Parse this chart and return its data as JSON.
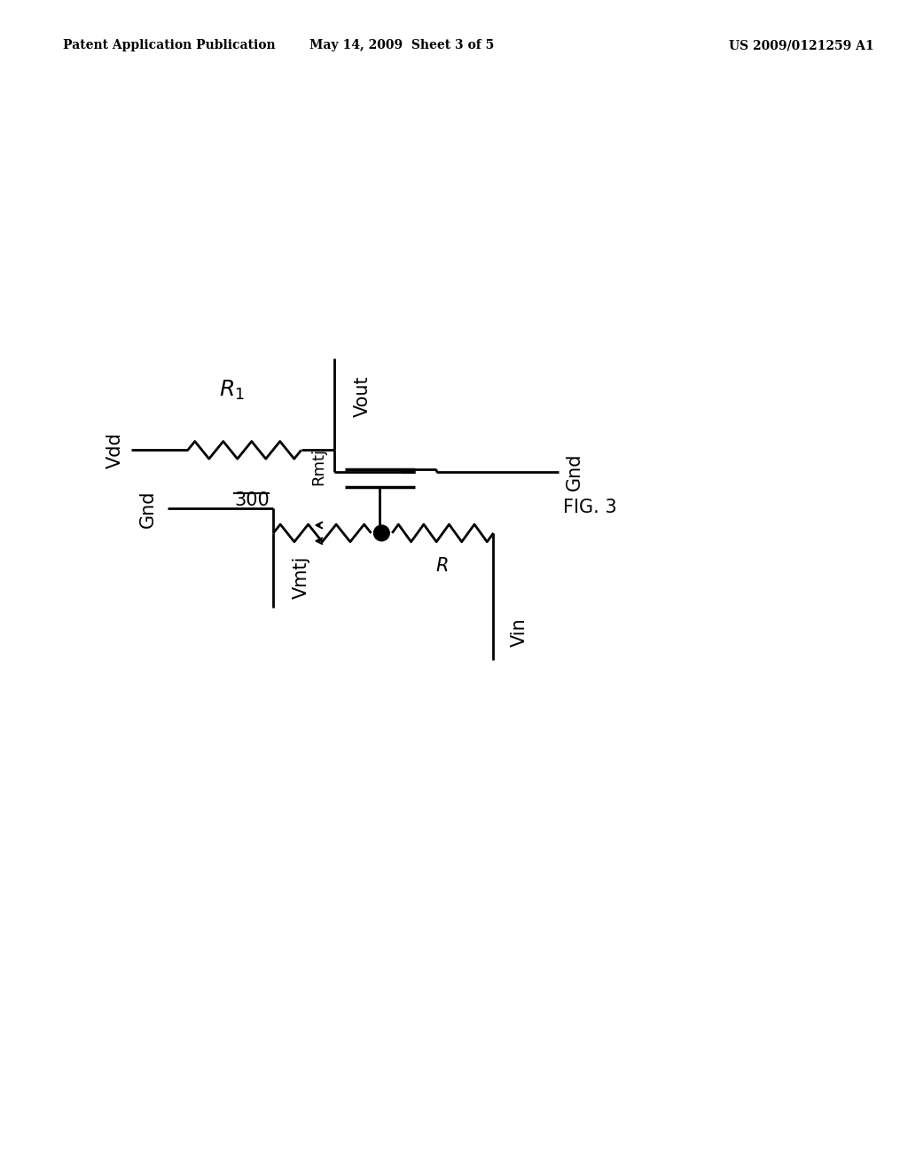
{
  "bg_color": "#ffffff",
  "line_color": "#000000",
  "header_left": "Patent Application Publication",
  "header_mid": "May 14, 2009  Sheet 3 of 5",
  "header_right": "US 2009/0121259 A1",
  "fig_label": "FIG. 3",
  "circuit_label": "300"
}
